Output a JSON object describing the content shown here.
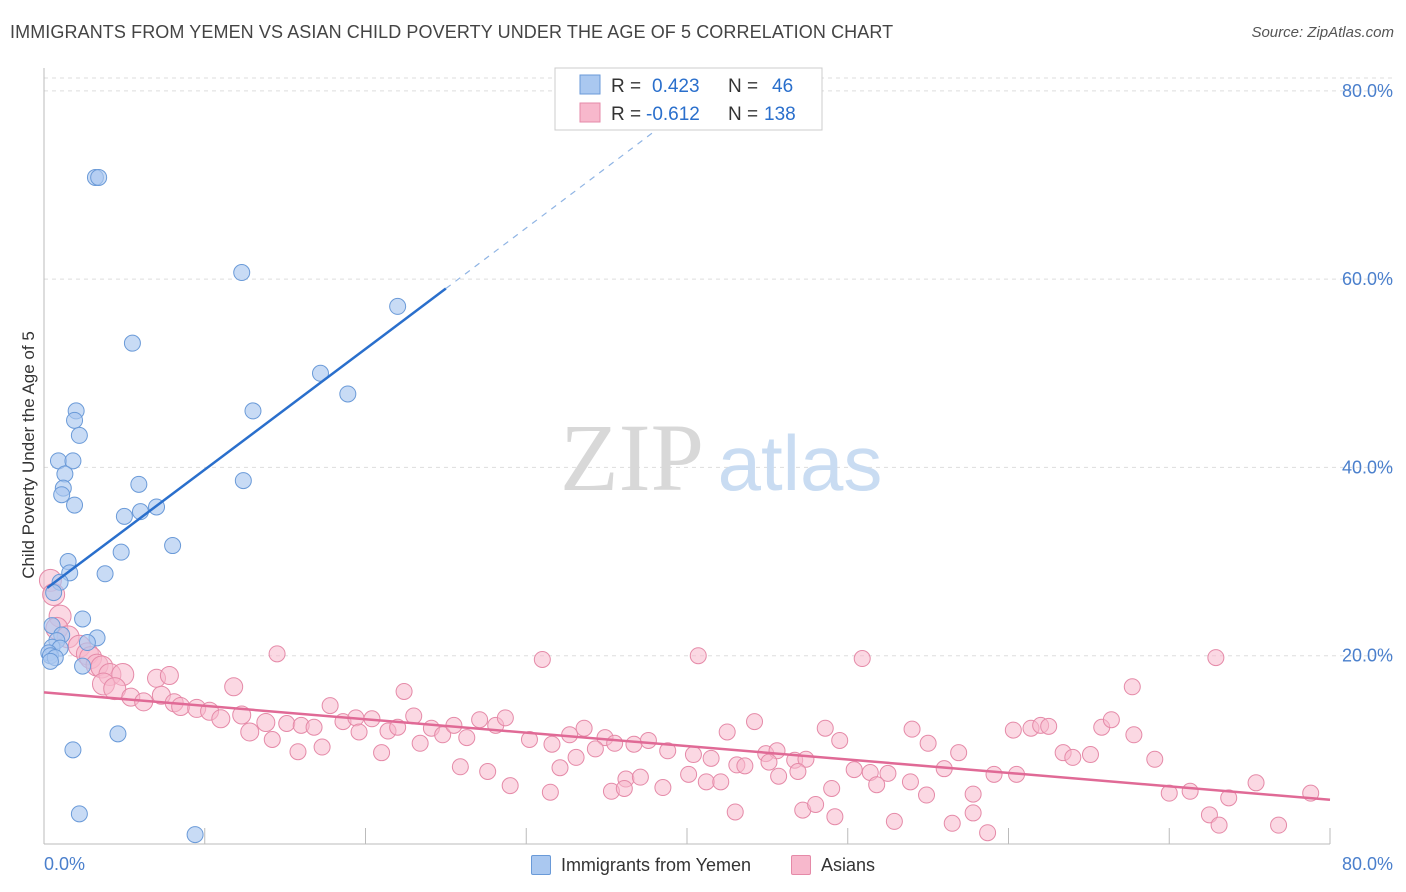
{
  "title": "IMMIGRANTS FROM YEMEN VS ASIAN CHILD POVERTY UNDER THE AGE OF 5 CORRELATION CHART",
  "source": "Source: ZipAtlas.com",
  "watermark": {
    "zip": "ZIP",
    "atlas": "atlas"
  },
  "colors": {
    "blue_fill": "#aac8f0",
    "blue_stroke": "#6a9ad8",
    "blue_line": "#2a6fcc",
    "pink_fill": "#f7b8cc",
    "pink_stroke": "#e58aa8",
    "pink_line": "#e06a96",
    "axis_text": "#4a7fcc",
    "grid": "#dddddd"
  },
  "legend_top": {
    "rows": [
      {
        "r_label": "R =",
        "r_value": "0.423",
        "n_label": "N =",
        "n_value": "46"
      },
      {
        "r_label": "R =",
        "r_value": "-0.612",
        "n_label": "N =",
        "n_value": "138"
      }
    ]
  },
  "legend_bottom": [
    "Immigrants from Yemen",
    "Asians"
  ],
  "chart_data": {
    "type": "scatter",
    "xlabel": "",
    "ylabel": "Child Poverty Under the Age of 5",
    "xlim": [
      0,
      80
    ],
    "ylim": [
      0,
      82
    ],
    "x_tick_labels": [
      "0.0%",
      "80.0%"
    ],
    "y_ticks": [
      20,
      40,
      60,
      80
    ],
    "y_tick_labels": [
      "20.0%",
      "40.0%",
      "60.0%",
      "80.0%"
    ],
    "series": [
      {
        "name": "Immigrants from Yemen",
        "R": 0.423,
        "N": 46,
        "trend": {
          "x0": 0.2,
          "y0": 27.2,
          "x1": 25.0,
          "y1": 59.0,
          "dash_x1": 40.0,
          "dash_y1": 78.3
        },
        "points": [
          [
            3.2,
            70.8
          ],
          [
            3.4,
            70.8
          ],
          [
            12.3,
            60.7
          ],
          [
            22.0,
            57.1
          ],
          [
            5.5,
            53.2
          ],
          [
            17.2,
            50.0
          ],
          [
            18.9,
            47.8
          ],
          [
            13.0,
            46.0
          ],
          [
            2.0,
            46.0
          ],
          [
            1.9,
            45.0
          ],
          [
            2.2,
            43.4
          ],
          [
            0.9,
            40.7
          ],
          [
            1.8,
            40.7
          ],
          [
            1.3,
            39.3
          ],
          [
            12.4,
            38.6
          ],
          [
            5.9,
            38.2
          ],
          [
            1.2,
            37.8
          ],
          [
            1.1,
            37.1
          ],
          [
            1.9,
            36.0
          ],
          [
            7.0,
            35.8
          ],
          [
            6.0,
            35.3
          ],
          [
            5.0,
            34.8
          ],
          [
            8.0,
            31.7
          ],
          [
            4.8,
            31.0
          ],
          [
            1.5,
            30.0
          ],
          [
            1.6,
            28.8
          ],
          [
            3.8,
            28.7
          ],
          [
            1.0,
            27.8
          ],
          [
            0.6,
            26.7
          ],
          [
            2.4,
            23.9
          ],
          [
            0.5,
            23.2
          ],
          [
            1.1,
            22.2
          ],
          [
            3.3,
            21.9
          ],
          [
            0.8,
            21.6
          ],
          [
            2.7,
            21.4
          ],
          [
            0.5,
            20.9
          ],
          [
            1.0,
            20.8
          ],
          [
            0.3,
            20.3
          ],
          [
            0.4,
            20.0
          ],
          [
            0.7,
            19.8
          ],
          [
            0.4,
            19.4
          ],
          [
            2.4,
            18.9
          ],
          [
            4.6,
            11.7
          ],
          [
            1.8,
            10.0
          ],
          [
            2.2,
            3.2
          ],
          [
            9.4,
            1.0
          ]
        ]
      },
      {
        "name": "Asians",
        "R": -0.612,
        "N": 138,
        "trend": {
          "x0": 0.0,
          "y0": 16.1,
          "x1": 80.0,
          "y1": 4.7
        },
        "points": [
          [
            0.4,
            28.0
          ],
          [
            0.6,
            26.5
          ],
          [
            1.0,
            24.2
          ],
          [
            0.8,
            22.9
          ],
          [
            1.5,
            22.0
          ],
          [
            2.2,
            21.0
          ],
          [
            2.7,
            20.2
          ],
          [
            2.9,
            19.8
          ],
          [
            3.3,
            19.0
          ],
          [
            3.6,
            18.8
          ],
          [
            4.1,
            18.0
          ],
          [
            4.9,
            18.0
          ],
          [
            3.7,
            17.0
          ],
          [
            4.4,
            16.5
          ],
          [
            7.0,
            17.6
          ],
          [
            7.8,
            17.9
          ],
          [
            11.8,
            16.7
          ],
          [
            14.5,
            20.2
          ],
          [
            22.4,
            16.2
          ],
          [
            31.0,
            19.6
          ],
          [
            40.7,
            20.0
          ],
          [
            50.9,
            19.7
          ],
          [
            72.9,
            19.8
          ],
          [
            67.7,
            16.7
          ],
          [
            5.4,
            15.6
          ],
          [
            6.2,
            15.1
          ],
          [
            7.3,
            15.8
          ],
          [
            8.1,
            15.0
          ],
          [
            8.5,
            14.6
          ],
          [
            9.5,
            14.4
          ],
          [
            10.3,
            14.1
          ],
          [
            11.0,
            13.3
          ],
          [
            12.3,
            13.7
          ],
          [
            13.8,
            12.9
          ],
          [
            15.1,
            12.8
          ],
          [
            16.0,
            12.6
          ],
          [
            16.8,
            12.4
          ],
          [
            17.8,
            14.7
          ],
          [
            18.6,
            13.0
          ],
          [
            19.4,
            13.4
          ],
          [
            20.4,
            13.3
          ],
          [
            21.4,
            12.0
          ],
          [
            22.0,
            12.4
          ],
          [
            23.0,
            13.6
          ],
          [
            24.1,
            12.3
          ],
          [
            24.8,
            11.6
          ],
          [
            25.5,
            12.6
          ],
          [
            26.3,
            11.3
          ],
          [
            27.1,
            13.2
          ],
          [
            28.1,
            12.6
          ],
          [
            28.7,
            13.4
          ],
          [
            30.2,
            11.1
          ],
          [
            31.6,
            10.6
          ],
          [
            32.7,
            11.6
          ],
          [
            33.6,
            12.3
          ],
          [
            34.9,
            11.3
          ],
          [
            35.5,
            10.7
          ],
          [
            36.7,
            10.6
          ],
          [
            37.6,
            11.0
          ],
          [
            38.8,
            9.9
          ],
          [
            40.4,
            9.5
          ],
          [
            41.5,
            9.1
          ],
          [
            42.5,
            11.9
          ],
          [
            43.1,
            8.4
          ],
          [
            44.2,
            13.0
          ],
          [
            44.9,
            9.6
          ],
          [
            45.6,
            9.9
          ],
          [
            46.7,
            8.9
          ],
          [
            47.4,
            9.0
          ],
          [
            48.6,
            12.3
          ],
          [
            49.5,
            11.0
          ],
          [
            50.4,
            7.9
          ],
          [
            51.4,
            7.6
          ],
          [
            52.5,
            7.5
          ],
          [
            54.0,
            12.2
          ],
          [
            55.0,
            10.7
          ],
          [
            56.0,
            8.0
          ],
          [
            56.9,
            9.7
          ],
          [
            57.8,
            5.3
          ],
          [
            59.1,
            7.4
          ],
          [
            60.3,
            12.1
          ],
          [
            61.4,
            12.3
          ],
          [
            62.0,
            12.6
          ],
          [
            62.5,
            12.5
          ],
          [
            63.4,
            9.7
          ],
          [
            64.0,
            9.2
          ],
          [
            65.1,
            9.5
          ],
          [
            65.8,
            12.4
          ],
          [
            66.4,
            13.2
          ],
          [
            67.8,
            11.6
          ],
          [
            69.1,
            9.0
          ],
          [
            70.0,
            5.4
          ],
          [
            71.3,
            5.6
          ],
          [
            72.5,
            3.1
          ],
          [
            73.1,
            2.0
          ],
          [
            73.7,
            4.9
          ],
          [
            75.4,
            6.5
          ],
          [
            76.8,
            2.0
          ],
          [
            78.8,
            5.4
          ],
          [
            12.8,
            11.9
          ],
          [
            14.2,
            11.1
          ],
          [
            15.8,
            9.8
          ],
          [
            17.3,
            10.3
          ],
          [
            19.6,
            11.9
          ],
          [
            21.0,
            9.7
          ],
          [
            23.4,
            10.7
          ],
          [
            25.9,
            8.2
          ],
          [
            27.6,
            7.7
          ],
          [
            29.0,
            6.2
          ],
          [
            32.1,
            8.1
          ],
          [
            33.1,
            9.2
          ],
          [
            34.3,
            10.1
          ],
          [
            36.2,
            6.9
          ],
          [
            37.1,
            7.1
          ],
          [
            38.5,
            6.0
          ],
          [
            40.1,
            7.4
          ],
          [
            41.2,
            6.6
          ],
          [
            42.1,
            6.6
          ],
          [
            43.6,
            8.3
          ],
          [
            45.7,
            7.2
          ],
          [
            46.9,
            7.7
          ],
          [
            49.0,
            5.9
          ],
          [
            51.8,
            6.3
          ],
          [
            52.9,
            2.4
          ],
          [
            53.9,
            6.6
          ],
          [
            54.9,
            5.2
          ],
          [
            56.5,
            2.2
          ],
          [
            57.8,
            3.3
          ],
          [
            58.7,
            1.2
          ],
          [
            60.5,
            7.4
          ],
          [
            45.1,
            8.7
          ],
          [
            43.0,
            3.4
          ],
          [
            47.2,
            3.6
          ],
          [
            48.0,
            4.2
          ],
          [
            49.2,
            2.9
          ],
          [
            35.3,
            5.6
          ],
          [
            36.1,
            5.9
          ],
          [
            31.5,
            5.5
          ]
        ]
      }
    ]
  }
}
